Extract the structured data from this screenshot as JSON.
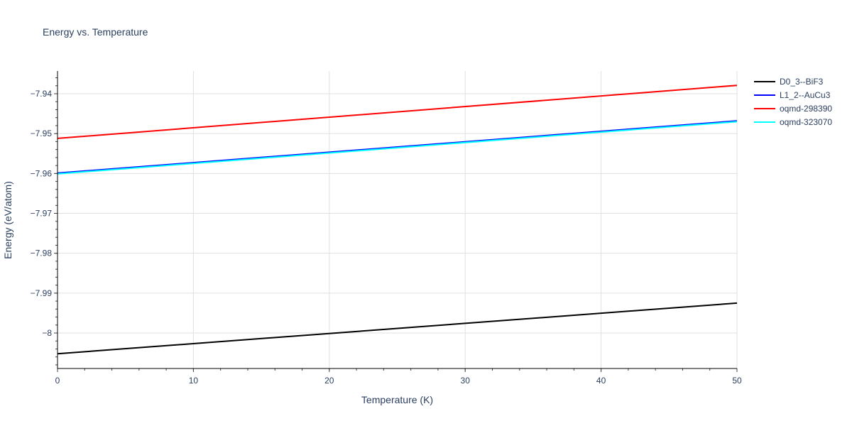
{
  "chart_data": {
    "type": "line",
    "title": "Energy vs. Temperature",
    "xlabel": "Temperature (K)",
    "ylabel": "Energy (eV/atom)",
    "xlim": [
      0,
      50
    ],
    "ylim": [
      -8.0089,
      -7.9343
    ],
    "xticks": [
      0,
      10,
      20,
      30,
      40,
      50
    ],
    "xtick_labels": [
      "0",
      "10",
      "20",
      "30",
      "40",
      "50"
    ],
    "yticks": [
      -8,
      -7.99,
      -7.98,
      -7.97,
      -7.96,
      -7.95,
      -7.94
    ],
    "ytick_labels": [
      "−8",
      "−7.99",
      "−7.98",
      "−7.97",
      "−7.96",
      "−7.95",
      "−7.94"
    ],
    "grid": true,
    "legend_placement": "top-right-outside",
    "series": [
      {
        "name": "D0_3--BiF3",
        "color": "#000000",
        "x": [
          0,
          50
        ],
        "y": [
          -8.0052,
          -7.9925
        ]
      },
      {
        "name": "L1_2--AuCu3",
        "color": "#0000ff",
        "x": [
          0,
          50
        ],
        "y": [
          -7.9599,
          -7.9468
        ]
      },
      {
        "name": "oqmd-298390",
        "color": "#ff0000",
        "x": [
          0,
          50
        ],
        "y": [
          -7.9512,
          -7.9379
        ]
      },
      {
        "name": "oqmd-323070",
        "color": "#00ffff",
        "x": [
          0,
          50
        ],
        "y": [
          -7.9601,
          -7.947
        ]
      }
    ]
  }
}
